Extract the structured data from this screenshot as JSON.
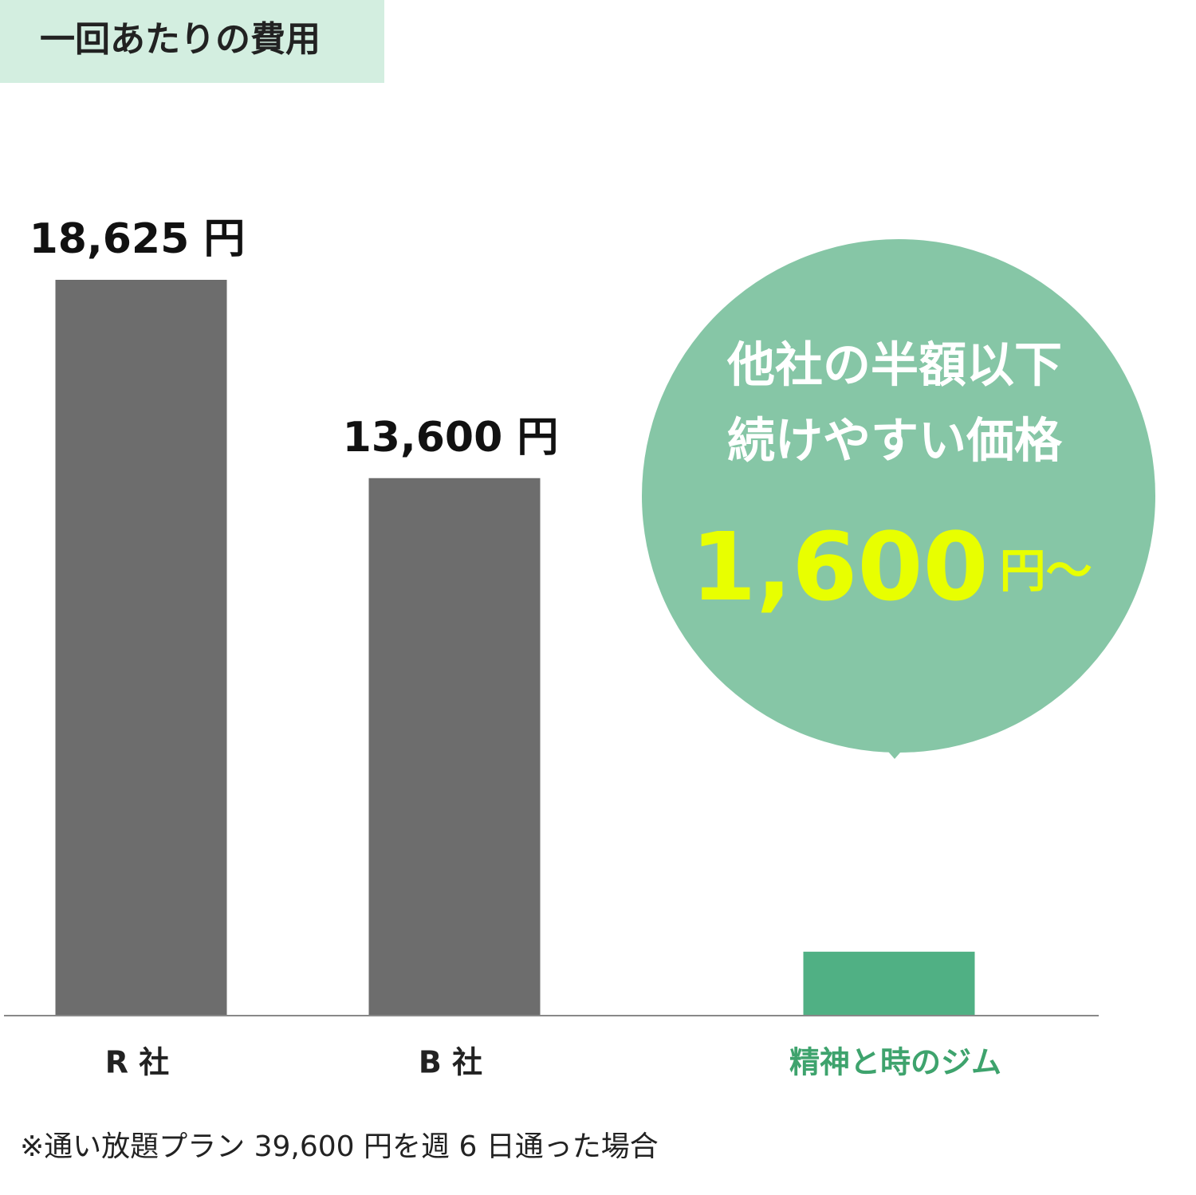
{
  "chart_data": {
    "type": "bar",
    "title": "一回あたりの費用",
    "categories": [
      "R 社",
      "B 社",
      "精神と時のジム"
    ],
    "values": [
      18625,
      13600,
      1600
    ],
    "value_labels": [
      "18,625 円",
      "13,600 円",
      "1,600"
    ],
    "colors": [
      "#6d6d6d",
      "#6d6d6d",
      "#50b084"
    ],
    "label_colors": [
      "#222222",
      "#222222",
      "#3ea36d"
    ],
    "callout": {
      "lines": [
        "他社の半額以下",
        "続けやすい価格"
      ],
      "suffix": "円〜",
      "color": "#86c6a6",
      "highlight_color": "#e8ff00"
    },
    "note": "※通い放題プラン 39,600 円を週 6 日通った場合"
  }
}
